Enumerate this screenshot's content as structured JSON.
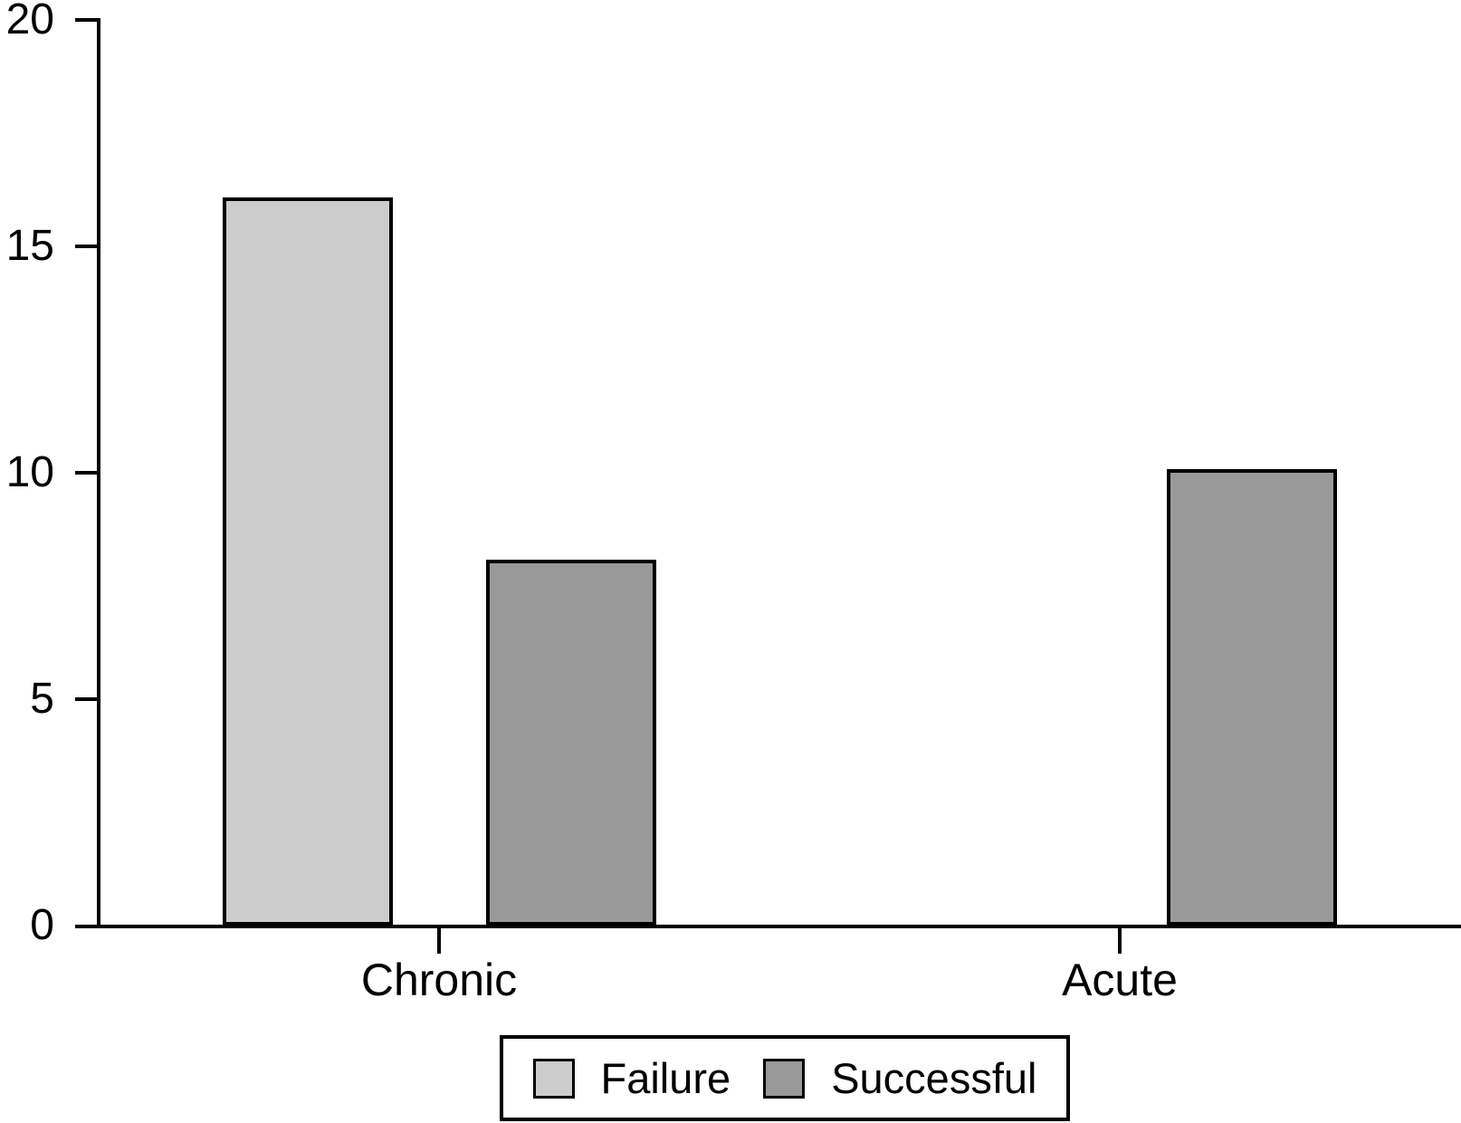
{
  "chart_data": {
    "type": "bar",
    "categories": [
      "Chronic",
      "Acute"
    ],
    "series": [
      {
        "name": "Failure",
        "color": "#cccccc",
        "values": [
          16,
          0
        ]
      },
      {
        "name": "Successful",
        "color": "#999999",
        "values": [
          8,
          10
        ]
      }
    ],
    "title": "",
    "xlabel": "",
    "ylabel": "",
    "ylim": [
      0,
      20
    ],
    "yticks": [
      0,
      5,
      10,
      15,
      20
    ],
    "grid": false,
    "legend_position": "bottom-center",
    "bar_outline_color": "#000000",
    "axis_color": "#000000",
    "background_color": "#ffffff"
  }
}
